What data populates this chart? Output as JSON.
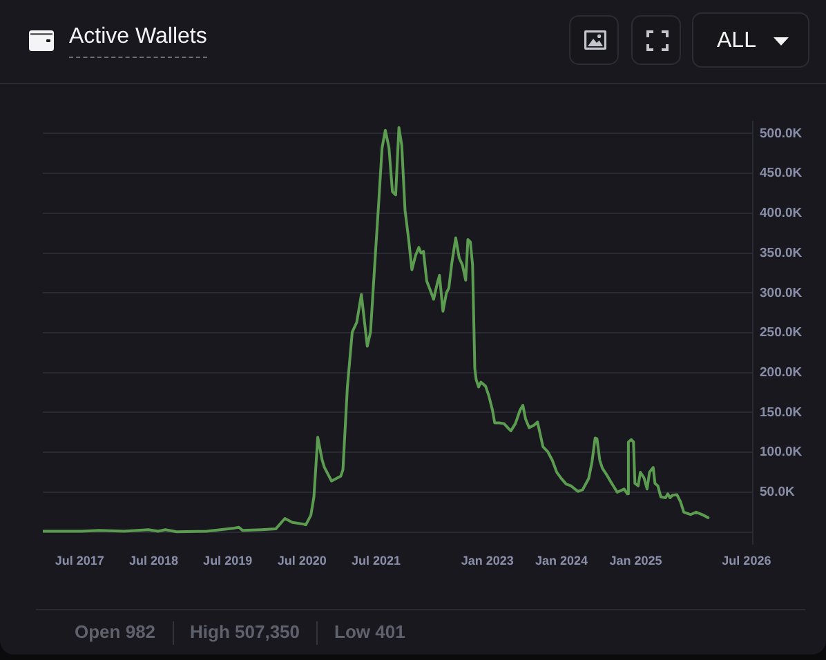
{
  "chart_data": {
    "type": "line",
    "title": "Active Wallets",
    "annotations": [
      "ALL",
      "Open 982",
      "High 507,350",
      "Low 401"
    ],
    "x": [
      "2017-01-01",
      "2017-04-05",
      "2017-07-15",
      "2017-10-05",
      "2018-02-06",
      "2018-06-05",
      "2018-07-23",
      "2018-08-28",
      "2018-10-22",
      "2019-03-20",
      "2019-08-03",
      "2019-08-25",
      "2019-09-13",
      "2019-12-16",
      "2020-02-23",
      "2020-04-08",
      "2020-05-15",
      "2020-07-09",
      "2020-07-20",
      "2020-08-14",
      "2020-08-29",
      "2020-09-17",
      "2020-10-09",
      "2020-10-20",
      "2020-11-24",
      "2021-01-08",
      "2021-01-19",
      "2021-02-10",
      "2021-03-06",
      "2021-03-28",
      "2021-04-20",
      "2021-05-19",
      "2021-06-04",
      "2021-06-27",
      "2021-07-15",
      "2021-07-31",
      "2021-08-16",
      "2021-09-03",
      "2021-09-20",
      "2021-10-06",
      "2021-10-22",
      "2021-11-05",
      "2021-11-21",
      "2021-12-09",
      "2021-12-25",
      "2022-01-12",
      "2022-01-28",
      "2022-02-08",
      "2022-02-20",
      "2022-03-08",
      "2022-03-26",
      "2022-04-11",
      "2022-04-29",
      "2022-05-10",
      "2022-05-27",
      "2022-06-13",
      "2022-06-25",
      "2022-07-10",
      "2022-07-29",
      "2022-08-15",
      "2022-08-31",
      "2022-09-16",
      "2022-09-27",
      "2022-10-09",
      "2022-10-20",
      "2022-10-31",
      "2022-11-07",
      "2022-11-19",
      "2022-11-30",
      "2022-12-23",
      "2023-01-08",
      "2023-01-26",
      "2023-02-06",
      "2023-02-28",
      "2023-03-24",
      "2023-04-15",
      "2023-04-27",
      "2023-05-19",
      "2023-06-11",
      "2023-06-25",
      "2023-07-08",
      "2023-07-26",
      "2023-08-18",
      "2023-09-05",
      "2023-10-02",
      "2023-10-25",
      "2023-11-17",
      "2023-12-09",
      "2024-01-01",
      "2024-01-25",
      "2024-02-17",
      "2024-03-22",
      "2024-04-14",
      "2024-05-14",
      "2024-05-30",
      "2024-06-15",
      "2024-06-24",
      "2024-07-08",
      "2024-07-21",
      "2024-08-13",
      "2024-09-05",
      "2024-10-02",
      "2024-11-05",
      "2024-11-21",
      "2024-11-26",
      "2024-12-10",
      "2024-12-21",
      "2024-12-28",
      "2025-01-13",
      "2025-01-24",
      "2025-02-11",
      "2025-02-26",
      "2025-03-10",
      "2025-03-28",
      "2025-04-06",
      "2025-04-20",
      "2025-05-05",
      "2025-05-28",
      "2025-06-08",
      "2025-06-19",
      "2025-06-30",
      "2025-07-23",
      "2025-08-10",
      "2025-08-26",
      "2025-09-29",
      "2025-10-26",
      "2025-11-24",
      "2025-12-24"
    ],
    "series": [
      {
        "color": "#5b9c50",
        "values": [
          982,
          1000,
          1000,
          2000,
          1000,
          3000,
          1000,
          3000,
          401,
          1000,
          5000,
          6000,
          2000,
          3000,
          4000,
          17000,
          12000,
          10000,
          9000,
          21000,
          44000,
          119000,
          90000,
          81000,
          64000,
          70000,
          78000,
          182000,
          251000,
          263000,
          298000,
          233000,
          251000,
          344000,
          416000,
          482000,
          504000,
          482000,
          427000,
          423000,
          507350,
          485000,
          404000,
          367000,
          329000,
          347000,
          357000,
          350000,
          352000,
          315000,
          303000,
          292000,
          312000,
          322000,
          277000,
          300000,
          306000,
          338000,
          369000,
          344000,
          335000,
          316000,
          367000,
          364000,
          335000,
          205000,
          191000,
          182000,
          188000,
          183000,
          171000,
          153000,
          137000,
          137000,
          136000,
          130000,
          127000,
          136000,
          153000,
          159000,
          142000,
          131000,
          134000,
          138000,
          107000,
          101000,
          90000,
          75000,
          67000,
          60000,
          58000,
          51000,
          53000,
          67000,
          87000,
          118000,
          117000,
          90000,
          80000,
          71000,
          61000,
          50000,
          54000,
          48000,
          113000,
          116000,
          113000,
          61000,
          58000,
          75000,
          68000,
          54000,
          75000,
          81000,
          61000,
          58000,
          44000,
          43000,
          48000,
          43000,
          46000,
          47000,
          38000,
          25000,
          22000,
          25000,
          22000,
          18000
        ]
      }
    ],
    "xlim": [
      "2017-01-01",
      "2026-08-01"
    ],
    "xticks": [
      {
        "value": "2017-07",
        "label": "Jul 2017"
      },
      {
        "value": "2018-07",
        "label": "Jul 2018"
      },
      {
        "value": "2019-07",
        "label": "Jul 2019"
      },
      {
        "value": "2020-07",
        "label": "Jul 2020"
      },
      {
        "value": "2021-07",
        "label": "Jul 2021"
      },
      {
        "value": "2023-01",
        "label": "Jan 2023"
      },
      {
        "value": "2024-01",
        "label": "Jan 2024"
      },
      {
        "value": "2025-01",
        "label": "Jan 2025"
      },
      {
        "value": "2026-07",
        "label": "Jul 2026"
      }
    ],
    "ylim": [
      -15000,
      515000
    ],
    "yticks": [
      {
        "value": 0,
        "label": null
      },
      {
        "value": 50000,
        "label": "50.0K"
      },
      {
        "value": 100000,
        "label": "100.0K"
      },
      {
        "value": 150000,
        "label": "150.0K"
      },
      {
        "value": 200000,
        "label": "200.0K"
      },
      {
        "value": 250000,
        "label": "250.0K"
      },
      {
        "value": 300000,
        "label": "300.0K"
      },
      {
        "value": 350000,
        "label": "350.0K"
      },
      {
        "value": 400000,
        "label": "400.0K"
      },
      {
        "value": 450000,
        "label": "450.0K"
      },
      {
        "value": 500000,
        "label": "500.0K"
      }
    ],
    "grid": "y",
    "marker": "none",
    "line_style": "solid"
  }
}
